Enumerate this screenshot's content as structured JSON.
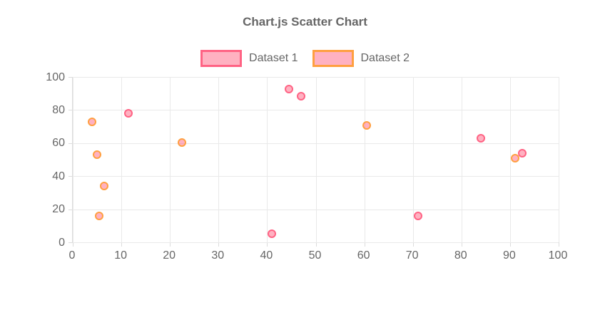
{
  "chart_data": {
    "type": "scatter",
    "title": "Chart.js Scatter Chart",
    "legend_position": "top",
    "grid": true,
    "axes": {
      "x": {
        "min": 0,
        "max": 100,
        "ticks": [
          0,
          10,
          20,
          30,
          40,
          50,
          60,
          70,
          80,
          90,
          100
        ]
      },
      "y": {
        "min": 0,
        "max": 100,
        "ticks": [
          0,
          20,
          40,
          60,
          80,
          100
        ]
      }
    },
    "series": [
      {
        "name": "Dataset 1",
        "border_color": "#FF6384",
        "fill_color": "rgba(255,99,132,0.5)",
        "points": [
          {
            "x": 11.5,
            "y": 78
          },
          {
            "x": 41,
            "y": 5
          },
          {
            "x": 44.5,
            "y": 92.5
          },
          {
            "x": 47,
            "y": 88.5
          },
          {
            "x": 71,
            "y": 16
          },
          {
            "x": 84,
            "y": 63
          },
          {
            "x": 92.5,
            "y": 54
          }
        ]
      },
      {
        "name": "Dataset 2",
        "border_color": "#FF9F40",
        "fill_color": "rgba(255,99,132,0.5)",
        "points": [
          {
            "x": 4,
            "y": 73
          },
          {
            "x": 5,
            "y": 53
          },
          {
            "x": 5.5,
            "y": 16
          },
          {
            "x": 6.5,
            "y": 34
          },
          {
            "x": 22.5,
            "y": 60.5
          },
          {
            "x": 60.5,
            "y": 70.5
          },
          {
            "x": 91,
            "y": 51
          }
        ]
      }
    ],
    "colors": {
      "text": "#666666",
      "grid": "#e9e9e9",
      "axis_border": "#dcdcdc",
      "background": "#ffffff"
    }
  }
}
